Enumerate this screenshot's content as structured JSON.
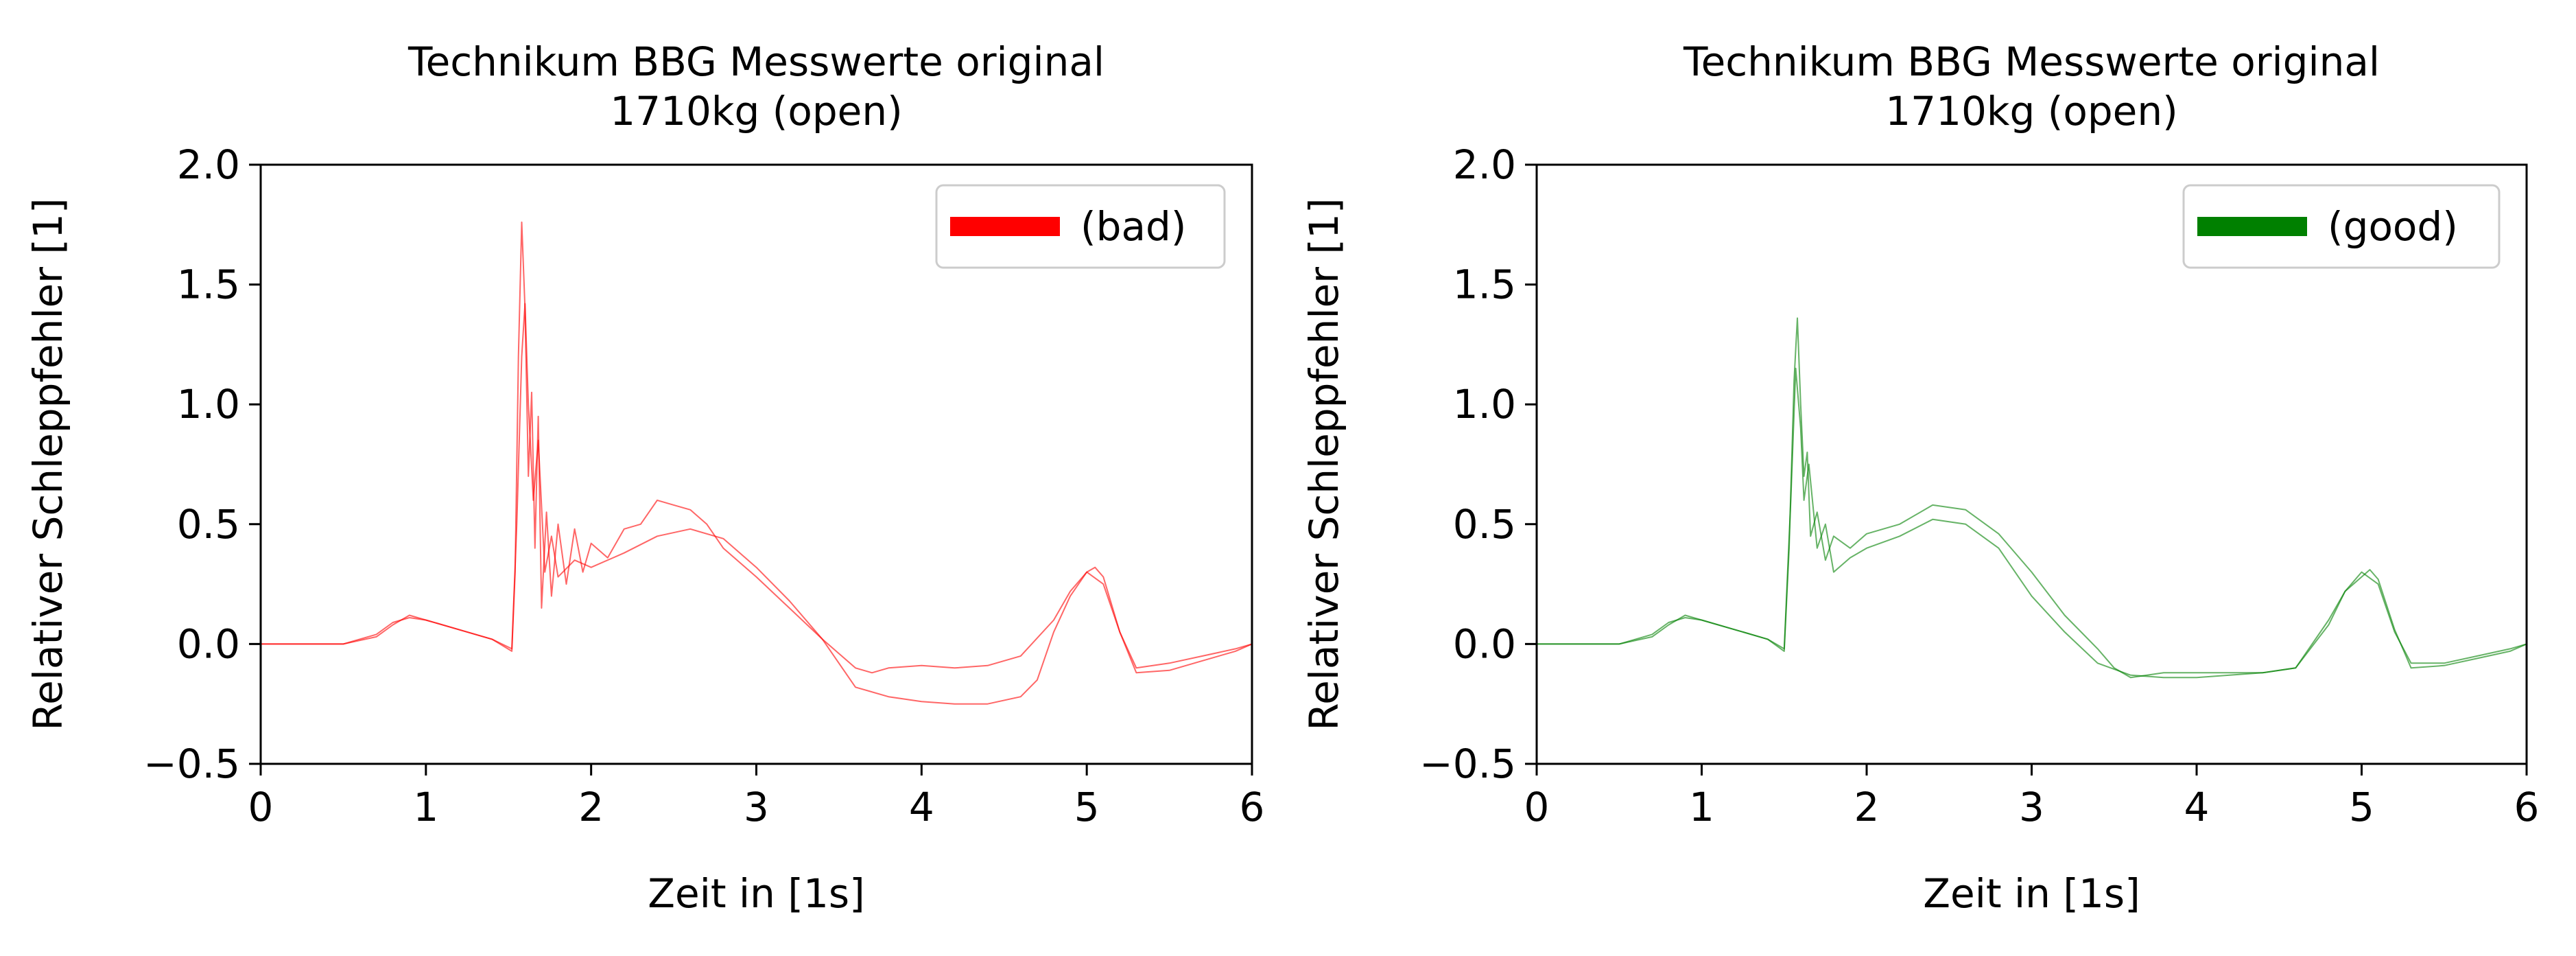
{
  "chart_data": [
    {
      "type": "line",
      "title": "Technikum BBG Messwerte original\n1710kg (open)",
      "xlabel": "Zeit in [1s]",
      "ylabel": "Relativer Schleppfehler [1]",
      "xlim": [
        0,
        6
      ],
      "ylim": [
        -0.5,
        2.0
      ],
      "xticks": [
        0,
        1,
        2,
        3,
        4,
        5,
        6
      ],
      "yticks": [
        -0.5,
        0.0,
        0.5,
        1.0,
        1.5,
        2.0
      ],
      "xtick_labels": [
        "0",
        "1",
        "2",
        "3",
        "4",
        "5",
        "6"
      ],
      "ytick_labels": [
        "−0.5",
        "0.0",
        "0.5",
        "1.0",
        "1.5",
        "2.0"
      ],
      "grid": false,
      "legend": {
        "position": "top-right",
        "entries": [
          {
            "label": "(bad)",
            "color": "#ff0000"
          }
        ]
      },
      "color": "#ff0000",
      "series": [
        {
          "x": [
            0,
            0.5,
            0.7,
            0.8,
            0.9,
            1.0,
            1.2,
            1.4,
            1.52,
            1.54,
            1.56,
            1.58,
            1.6,
            1.62,
            1.64,
            1.66,
            1.68,
            1.7,
            1.73,
            1.76,
            1.8,
            1.85,
            1.9,
            1.95,
            2.0,
            2.1,
            2.2,
            2.3,
            2.4,
            2.5,
            2.6,
            2.7,
            2.8,
            3.0,
            3.2,
            3.4,
            3.6,
            3.7,
            3.8,
            4.0,
            4.2,
            4.4,
            4.6,
            4.8,
            4.9,
            5.0,
            5.1,
            5.2,
            5.3,
            5.5,
            5.7,
            5.9,
            6.0
          ],
          "y": [
            0.0,
            0.0,
            0.03,
            0.08,
            0.12,
            0.1,
            0.06,
            0.02,
            -0.03,
            0.3,
            1.2,
            1.76,
            1.4,
            0.7,
            1.05,
            0.4,
            0.95,
            0.15,
            0.55,
            0.2,
            0.5,
            0.25,
            0.48,
            0.3,
            0.42,
            0.36,
            0.48,
            0.5,
            0.6,
            0.58,
            0.56,
            0.5,
            0.4,
            0.28,
            0.15,
            0.02,
            -0.1,
            -0.12,
            -0.1,
            -0.09,
            -0.1,
            -0.09,
            -0.05,
            0.1,
            0.22,
            0.3,
            0.25,
            0.05,
            -0.1,
            -0.08,
            -0.05,
            -0.02,
            0.0
          ]
        },
        {
          "x": [
            0,
            0.5,
            0.7,
            0.8,
            0.9,
            1.0,
            1.2,
            1.4,
            1.52,
            1.55,
            1.58,
            1.6,
            1.62,
            1.65,
            1.68,
            1.72,
            1.76,
            1.8,
            1.9,
            2.0,
            2.2,
            2.4,
            2.6,
            2.8,
            3.0,
            3.2,
            3.4,
            3.6,
            3.8,
            4.0,
            4.2,
            4.4,
            4.6,
            4.7,
            4.8,
            4.9,
            5.0,
            5.05,
            5.1,
            5.2,
            5.3,
            5.5,
            5.7,
            5.9,
            6.0
          ],
          "y": [
            0.0,
            0.0,
            0.04,
            0.09,
            0.11,
            0.1,
            0.06,
            0.02,
            -0.02,
            0.5,
            1.2,
            1.42,
            1.0,
            0.6,
            0.85,
            0.3,
            0.45,
            0.28,
            0.35,
            0.32,
            0.38,
            0.45,
            0.48,
            0.44,
            0.32,
            0.18,
            0.02,
            -0.18,
            -0.22,
            -0.24,
            -0.25,
            -0.25,
            -0.22,
            -0.15,
            0.05,
            0.2,
            0.3,
            0.32,
            0.28,
            0.05,
            -0.12,
            -0.11,
            -0.07,
            -0.03,
            0.0
          ]
        }
      ]
    },
    {
      "type": "line",
      "title": "Technikum BBG Messwerte original\n1710kg (open)",
      "xlabel": "Zeit in [1s]",
      "ylabel": "Relativer Schleppfehler [1]",
      "xlim": [
        0,
        6
      ],
      "ylim": [
        -0.5,
        2.0
      ],
      "xticks": [
        0,
        1,
        2,
        3,
        4,
        5,
        6
      ],
      "yticks": [
        -0.5,
        0.0,
        0.5,
        1.0,
        1.5,
        2.0
      ],
      "xtick_labels": [
        "0",
        "1",
        "2",
        "3",
        "4",
        "5",
        "6"
      ],
      "ytick_labels": [
        "−0.5",
        "0.0",
        "0.5",
        "1.0",
        "1.5",
        "2.0"
      ],
      "grid": false,
      "legend": {
        "position": "top-right",
        "entries": [
          {
            "label": "(good)",
            "color": "#008000"
          }
        ]
      },
      "color": "#008000",
      "series": [
        {
          "x": [
            0,
            0.5,
            0.7,
            0.8,
            0.9,
            1.0,
            1.2,
            1.4,
            1.5,
            1.53,
            1.56,
            1.58,
            1.6,
            1.62,
            1.64,
            1.66,
            1.7,
            1.75,
            1.8,
            1.9,
            2.0,
            2.2,
            2.4,
            2.6,
            2.8,
            3.0,
            3.2,
            3.4,
            3.5,
            3.6,
            3.8,
            4.0,
            4.2,
            4.4,
            4.6,
            4.8,
            4.9,
            5.0,
            5.1,
            5.2,
            5.3,
            5.5,
            5.7,
            5.9,
            6.0
          ],
          "y": [
            0.0,
            0.0,
            0.03,
            0.08,
            0.12,
            0.1,
            0.06,
            0.02,
            -0.03,
            0.4,
            1.1,
            1.36,
            1.0,
            0.7,
            0.8,
            0.45,
            0.55,
            0.35,
            0.45,
            0.4,
            0.46,
            0.5,
            0.58,
            0.56,
            0.46,
            0.3,
            0.12,
            -0.02,
            -0.1,
            -0.14,
            -0.12,
            -0.12,
            -0.12,
            -0.12,
            -0.1,
            0.1,
            0.22,
            0.3,
            0.25,
            0.05,
            -0.08,
            -0.08,
            -0.05,
            -0.02,
            0.0
          ]
        },
        {
          "x": [
            0,
            0.5,
            0.7,
            0.8,
            0.9,
            1.0,
            1.2,
            1.4,
            1.5,
            1.54,
            1.57,
            1.6,
            1.62,
            1.65,
            1.7,
            1.75,
            1.8,
            1.9,
            2.0,
            2.2,
            2.4,
            2.6,
            2.8,
            3.0,
            3.2,
            3.4,
            3.6,
            3.8,
            4.0,
            4.2,
            4.4,
            4.6,
            4.8,
            4.9,
            5.0,
            5.05,
            5.1,
            5.2,
            5.3,
            5.5,
            5.7,
            5.9,
            6.0
          ],
          "y": [
            0.0,
            0.0,
            0.04,
            0.09,
            0.11,
            0.1,
            0.06,
            0.02,
            -0.02,
            0.6,
            1.15,
            0.9,
            0.6,
            0.75,
            0.4,
            0.5,
            0.3,
            0.36,
            0.4,
            0.45,
            0.52,
            0.5,
            0.4,
            0.2,
            0.05,
            -0.08,
            -0.13,
            -0.14,
            -0.14,
            -0.13,
            -0.12,
            -0.1,
            0.08,
            0.22,
            0.28,
            0.31,
            0.27,
            0.06,
            -0.1,
            -0.09,
            -0.06,
            -0.03,
            0.0
          ]
        }
      ]
    }
  ]
}
